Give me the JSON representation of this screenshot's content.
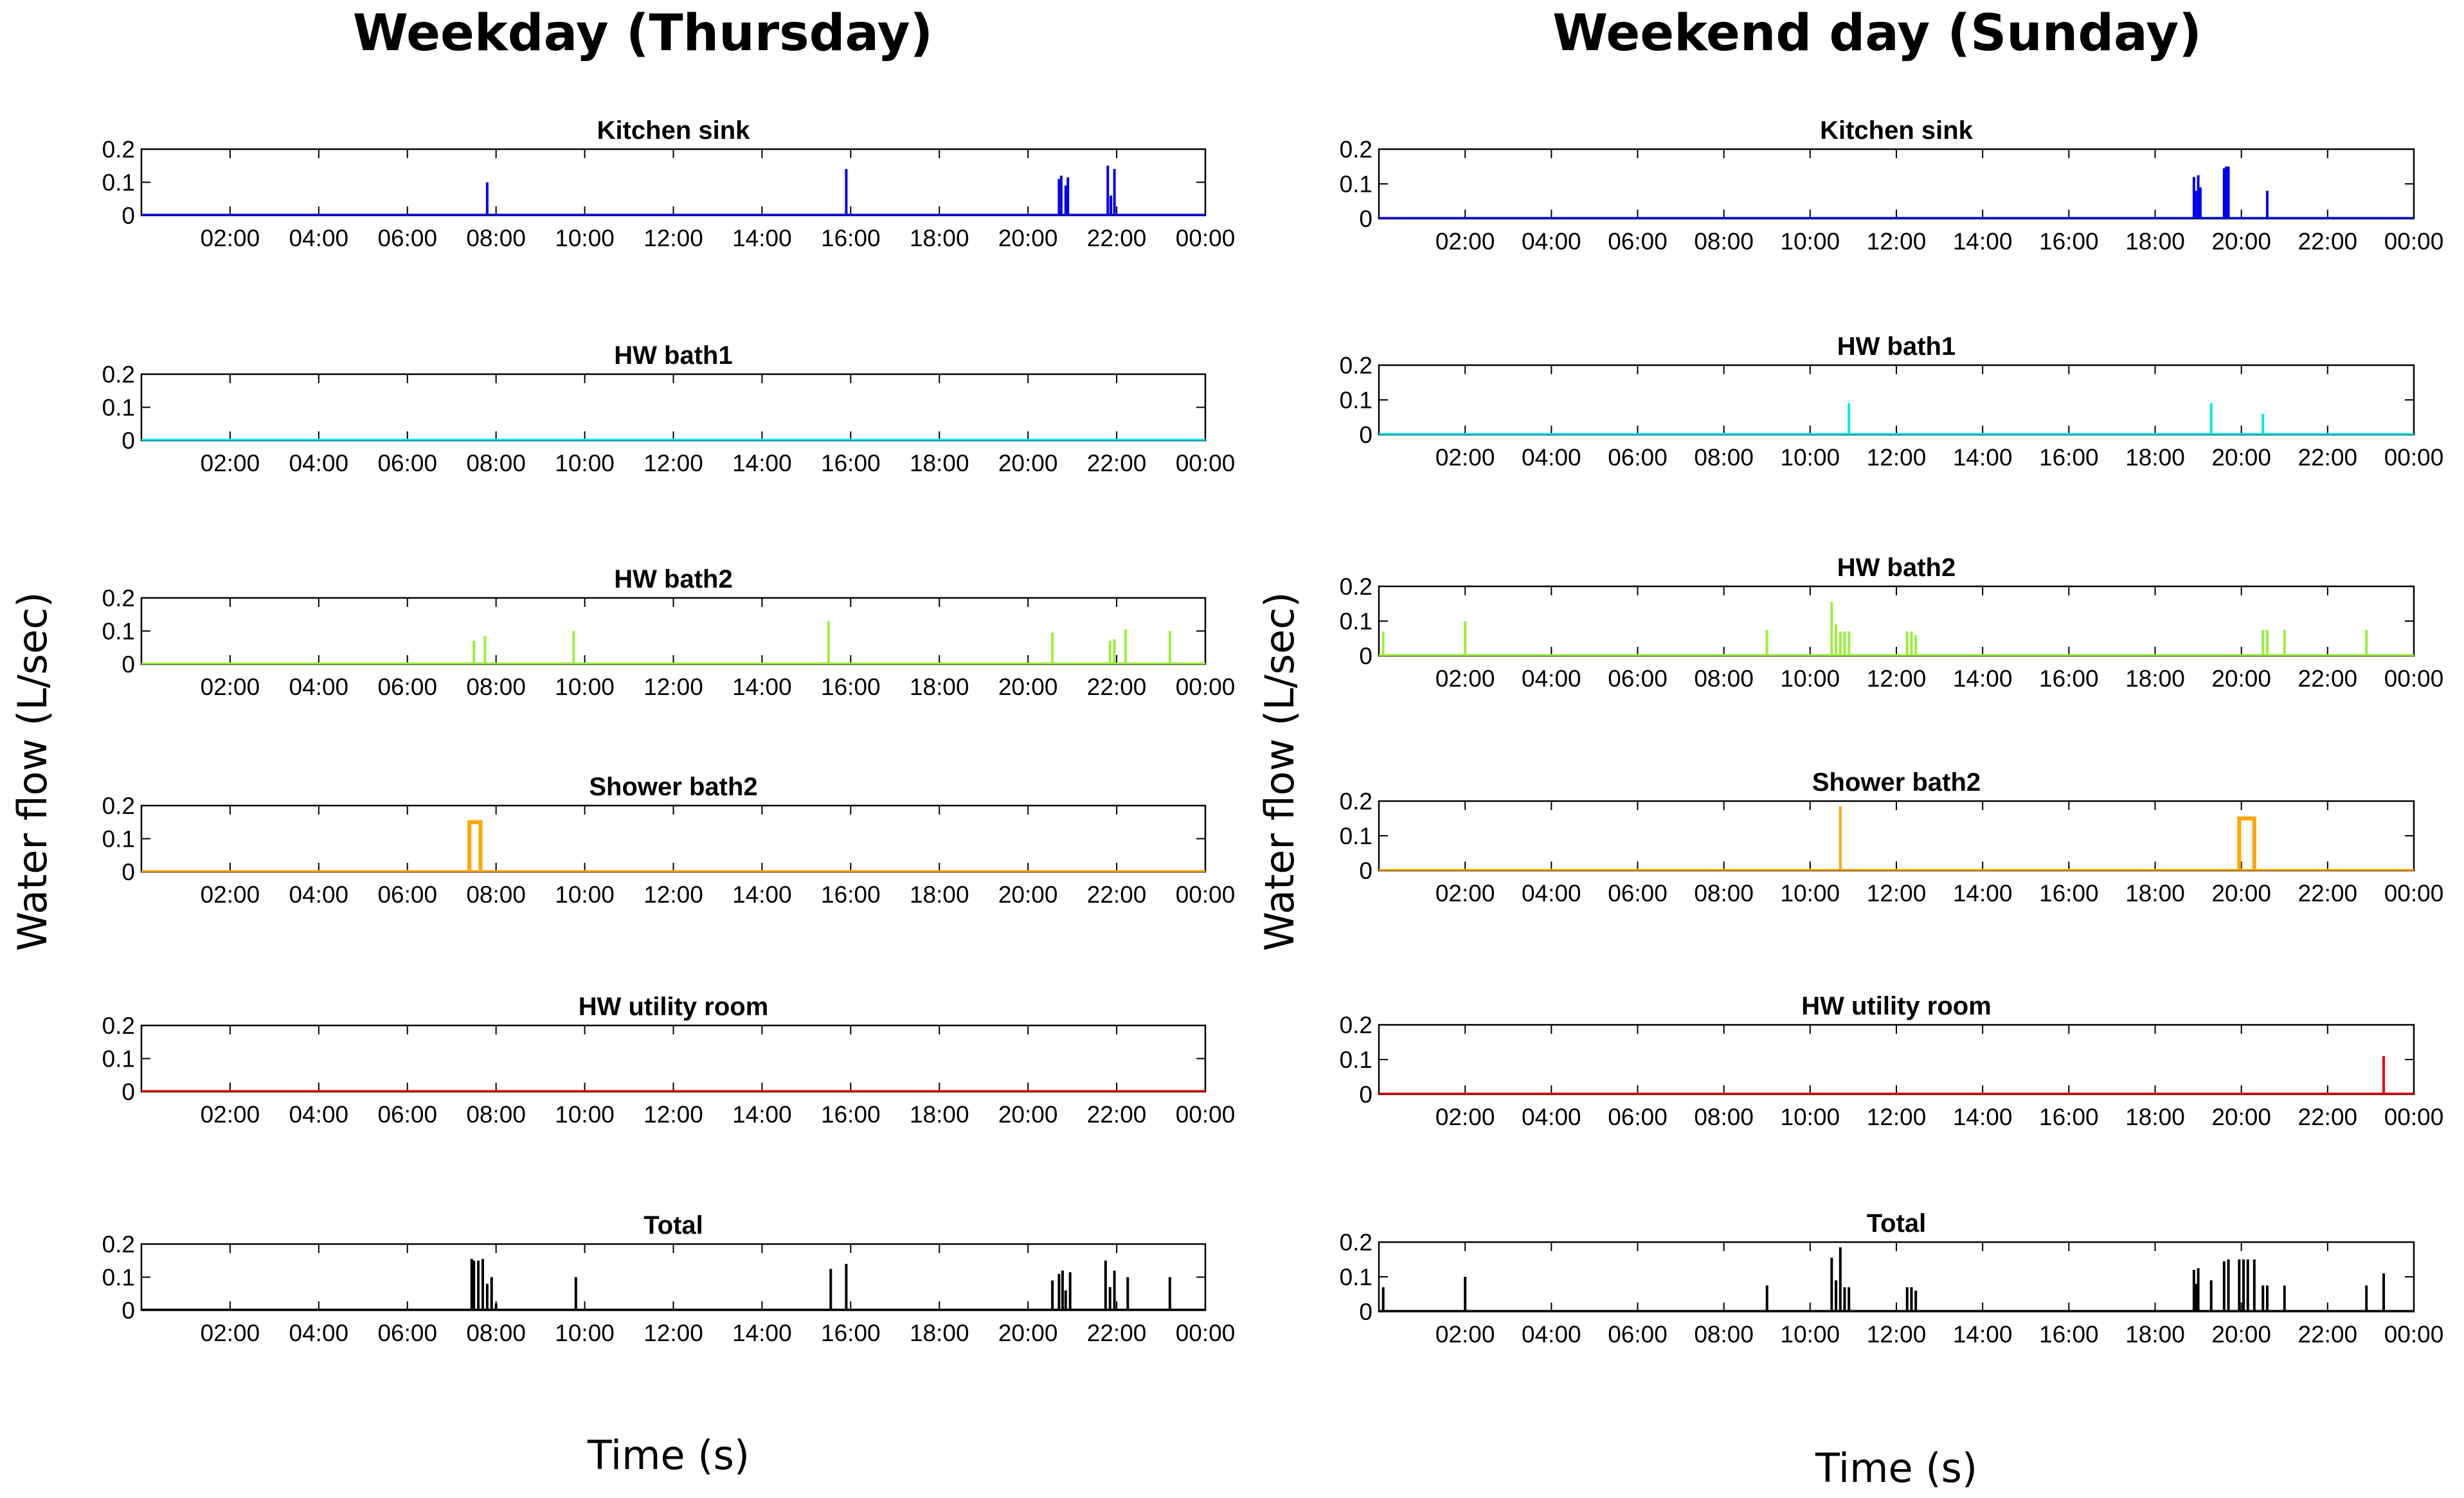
{
  "figure": {
    "columns": [
      {
        "id": "weekday",
        "title": "Weekday (Thursday)",
        "ylabel": "Water flow (L/sec)",
        "xlabel": "Time (s)"
      },
      {
        "id": "weekend",
        "title": "Weekend day (Sunday)",
        "ylabel": "Water flow (L/sec)",
        "xlabel": "Time (s)"
      }
    ]
  },
  "chart_data": [
    {
      "column": "weekday",
      "type": "line",
      "title": "Kitchen sink",
      "color": "#0000ee",
      "xlim": [
        0,
        24
      ],
      "ylim": [
        0,
        0.2
      ],
      "yticks": [
        "0",
        "0.1",
        "0.2"
      ],
      "xticks": [
        "02:00",
        "04:00",
        "06:00",
        "08:00",
        "10:00",
        "12:00",
        "14:00",
        "16:00",
        "18:00",
        "20:00",
        "22:00",
        "00:00"
      ],
      "events": [
        [
          7.8,
          0.1
        ],
        [
          15.9,
          0.14
        ],
        [
          20.7,
          0.11
        ],
        [
          20.75,
          0.12
        ],
        [
          20.85,
          0.09
        ],
        [
          20.9,
          0.115
        ],
        [
          21.8,
          0.15
        ],
        [
          21.87,
          0.06
        ],
        [
          21.95,
          0.14
        ]
      ]
    },
    {
      "column": "weekday",
      "type": "line",
      "title": "HW bath1",
      "color": "#00e5ee",
      "xlim": [
        0,
        24
      ],
      "ylim": [
        0,
        0.2
      ],
      "yticks": [
        "0",
        "0.1",
        "0.2"
      ],
      "xticks": [
        "02:00",
        "04:00",
        "06:00",
        "08:00",
        "10:00",
        "12:00",
        "14:00",
        "16:00",
        "18:00",
        "20:00",
        "22:00",
        "00:00"
      ],
      "events": []
    },
    {
      "column": "weekday",
      "type": "line",
      "title": "HW bath2",
      "color": "#9aef3a",
      "xlim": [
        0,
        24
      ],
      "ylim": [
        0,
        0.2
      ],
      "yticks": [
        "0",
        "0.1",
        "0.2"
      ],
      "xticks": [
        "02:00",
        "04:00",
        "06:00",
        "08:00",
        "10:00",
        "12:00",
        "14:00",
        "16:00",
        "18:00",
        "20:00",
        "22:00",
        "00:00"
      ],
      "events": [
        [
          7.5,
          0.07
        ],
        [
          7.75,
          0.085
        ],
        [
          9.75,
          0.1
        ],
        [
          15.5,
          0.13
        ],
        [
          20.55,
          0.095
        ],
        [
          21.85,
          0.07
        ],
        [
          21.95,
          0.075
        ],
        [
          22.2,
          0.105
        ],
        [
          23.2,
          0.1
        ]
      ]
    },
    {
      "column": "weekday",
      "type": "line",
      "title": "Shower bath2",
      "color": "#ffa500",
      "xlim": [
        0,
        24
      ],
      "ylim": [
        0,
        0.2
      ],
      "yticks": [
        "0",
        "0.1",
        "0.2"
      ],
      "xticks": [
        "02:00",
        "04:00",
        "06:00",
        "08:00",
        "10:00",
        "12:00",
        "14:00",
        "16:00",
        "18:00",
        "20:00",
        "22:00",
        "00:00"
      ],
      "events": [],
      "blocks": [
        [
          7.4,
          7.65,
          0.15
        ]
      ]
    },
    {
      "column": "weekday",
      "type": "line",
      "title": "HW utility room",
      "color": "#e60000",
      "xlim": [
        0,
        24
      ],
      "ylim": [
        0,
        0.2
      ],
      "yticks": [
        "0",
        "0.1",
        "0.2"
      ],
      "xticks": [
        "02:00",
        "04:00",
        "06:00",
        "08:00",
        "10:00",
        "12:00",
        "14:00",
        "16:00",
        "18:00",
        "20:00",
        "22:00",
        "00:00"
      ],
      "events": []
    },
    {
      "column": "weekday",
      "type": "line",
      "title": "Total",
      "color": "#000000",
      "xlim": [
        0,
        24
      ],
      "ylim": [
        0,
        0.2
      ],
      "yticks": [
        "0",
        "0.1",
        "0.2"
      ],
      "xticks": [
        "02:00",
        "04:00",
        "06:00",
        "08:00",
        "10:00",
        "12:00",
        "14:00",
        "16:00",
        "18:00",
        "20:00",
        "22:00",
        "00:00"
      ],
      "events": [
        [
          7.45,
          0.155
        ],
        [
          7.5,
          0.15
        ],
        [
          7.6,
          0.15
        ],
        [
          7.7,
          0.155
        ],
        [
          7.8,
          0.08
        ],
        [
          7.9,
          0.1
        ],
        [
          8.0,
          0.02
        ],
        [
          9.8,
          0.1
        ],
        [
          15.55,
          0.125
        ],
        [
          15.9,
          0.14
        ],
        [
          20.55,
          0.09
        ],
        [
          20.7,
          0.11
        ],
        [
          20.78,
          0.12
        ],
        [
          20.85,
          0.06
        ],
        [
          20.95,
          0.115
        ],
        [
          21.75,
          0.15
        ],
        [
          21.85,
          0.07
        ],
        [
          21.95,
          0.12
        ],
        [
          22.25,
          0.1
        ],
        [
          23.2,
          0.1
        ]
      ]
    },
    {
      "column": "weekend",
      "type": "line",
      "title": "Kitchen sink",
      "color": "#0000ee",
      "xlim": [
        0,
        24
      ],
      "ylim": [
        0,
        0.2
      ],
      "yticks": [
        "0",
        "0.1",
        "0.2"
      ],
      "xticks": [
        "02:00",
        "04:00",
        "06:00",
        "08:00",
        "10:00",
        "12:00",
        "14:00",
        "16:00",
        "18:00",
        "20:00",
        "22:00",
        "00:00"
      ],
      "events": [
        [
          18.9,
          0.12
        ],
        [
          18.95,
          0.08
        ],
        [
          19.0,
          0.125
        ],
        [
          19.05,
          0.09
        ],
        [
          19.6,
          0.145
        ],
        [
          19.65,
          0.15
        ],
        [
          19.7,
          0.15
        ],
        [
          20.6,
          0.08
        ]
      ]
    },
    {
      "column": "weekend",
      "type": "line",
      "title": "HW bath1",
      "color": "#00e5ee",
      "xlim": [
        0,
        24
      ],
      "ylim": [
        0,
        0.2
      ],
      "yticks": [
        "0",
        "0.1",
        "0.2"
      ],
      "xticks": [
        "02:00",
        "04:00",
        "06:00",
        "08:00",
        "10:00",
        "12:00",
        "14:00",
        "16:00",
        "18:00",
        "20:00",
        "22:00",
        "00:00"
      ],
      "events": [
        [
          10.9,
          0.09
        ],
        [
          19.3,
          0.09
        ],
        [
          20.5,
          0.06
        ]
      ]
    },
    {
      "column": "weekend",
      "type": "line",
      "title": "HW bath2",
      "color": "#9aef3a",
      "xlim": [
        0,
        24
      ],
      "ylim": [
        0,
        0.2
      ],
      "yticks": [
        "0",
        "0.1",
        "0.2"
      ],
      "xticks": [
        "02:00",
        "04:00",
        "06:00",
        "08:00",
        "10:00",
        "12:00",
        "14:00",
        "16:00",
        "18:00",
        "20:00",
        "22:00",
        "00:00"
      ],
      "events": [
        [
          0.1,
          0.07
        ],
        [
          2.0,
          0.1
        ],
        [
          9.0,
          0.075
        ],
        [
          10.5,
          0.155
        ],
        [
          10.6,
          0.09
        ],
        [
          10.7,
          0.07
        ],
        [
          10.8,
          0.07
        ],
        [
          10.9,
          0.07
        ],
        [
          12.25,
          0.07
        ],
        [
          12.35,
          0.07
        ],
        [
          12.45,
          0.06
        ],
        [
          20.5,
          0.075
        ],
        [
          20.6,
          0.075
        ],
        [
          21.0,
          0.075
        ],
        [
          22.9,
          0.075
        ]
      ]
    },
    {
      "column": "weekend",
      "type": "line",
      "title": "Shower bath2",
      "color": "#ffa500",
      "xlim": [
        0,
        24
      ],
      "ylim": [
        0,
        0.2
      ],
      "yticks": [
        "0",
        "0.1",
        "0.2"
      ],
      "xticks": [
        "02:00",
        "04:00",
        "06:00",
        "08:00",
        "10:00",
        "12:00",
        "14:00",
        "16:00",
        "18:00",
        "20:00",
        "22:00",
        "00:00"
      ],
      "events": [
        [
          10.7,
          0.185
        ]
      ],
      "blocks": [
        [
          19.95,
          20.3,
          0.15
        ]
      ]
    },
    {
      "column": "weekend",
      "type": "line",
      "title": "HW utility room",
      "color": "#e60000",
      "xlim": [
        0,
        24
      ],
      "ylim": [
        0,
        0.2
      ],
      "yticks": [
        "0",
        "0.1",
        "0.2"
      ],
      "xticks": [
        "02:00",
        "04:00",
        "06:00",
        "08:00",
        "10:00",
        "12:00",
        "14:00",
        "16:00",
        "18:00",
        "20:00",
        "22:00",
        "00:00"
      ],
      "events": [
        [
          23.3,
          0.11
        ]
      ]
    },
    {
      "column": "weekend",
      "type": "line",
      "title": "Total",
      "color": "#000000",
      "xlim": [
        0,
        24
      ],
      "ylim": [
        0,
        0.2
      ],
      "yticks": [
        "0",
        "0.1",
        "0.2"
      ],
      "xticks": [
        "02:00",
        "04:00",
        "06:00",
        "08:00",
        "10:00",
        "12:00",
        "14:00",
        "16:00",
        "18:00",
        "20:00",
        "22:00",
        "00:00"
      ],
      "events": [
        [
          0.1,
          0.07
        ],
        [
          2.0,
          0.1
        ],
        [
          9.0,
          0.075
        ],
        [
          10.5,
          0.155
        ],
        [
          10.6,
          0.09
        ],
        [
          10.7,
          0.185
        ],
        [
          10.8,
          0.07
        ],
        [
          10.9,
          0.07
        ],
        [
          12.25,
          0.07
        ],
        [
          12.35,
          0.07
        ],
        [
          12.45,
          0.06
        ],
        [
          18.9,
          0.12
        ],
        [
          18.95,
          0.08
        ],
        [
          19.0,
          0.125
        ],
        [
          19.3,
          0.09
        ],
        [
          19.6,
          0.145
        ],
        [
          19.7,
          0.15
        ],
        [
          19.95,
          0.15
        ],
        [
          20.05,
          0.15
        ],
        [
          20.15,
          0.15
        ],
        [
          20.3,
          0.15
        ],
        [
          20.5,
          0.075
        ],
        [
          20.6,
          0.075
        ],
        [
          21.0,
          0.075
        ],
        [
          22.9,
          0.075
        ],
        [
          23.3,
          0.11
        ]
      ]
    }
  ]
}
